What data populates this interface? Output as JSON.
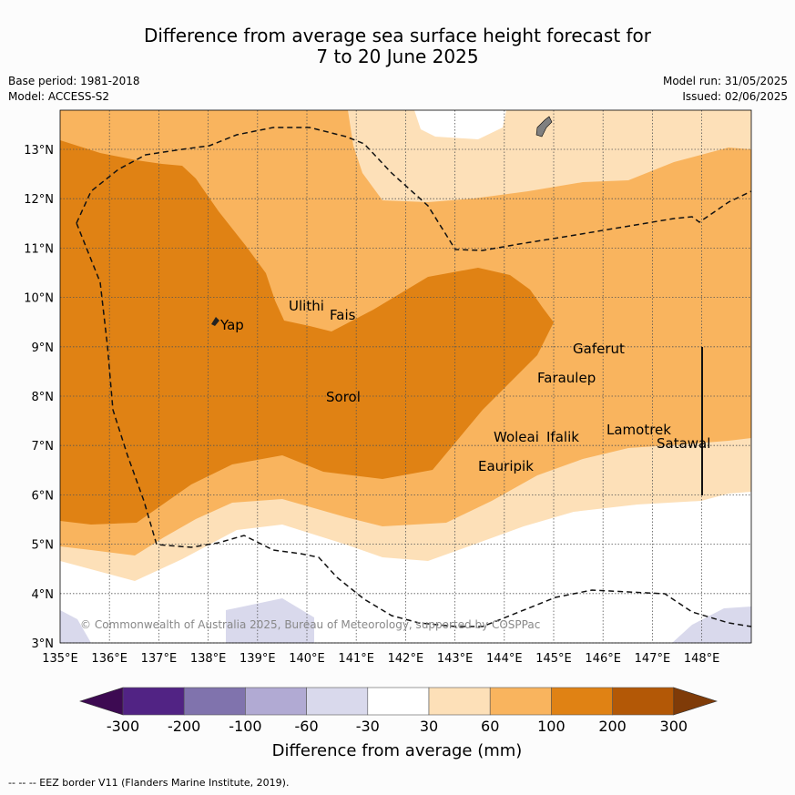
{
  "title_line1": "Difference from average sea surface height forecast for",
  "title_line2": "7 to 20 June 2025",
  "meta_left": [
    "Base period: 1981-2018",
    "Model: ACCESS-S2"
  ],
  "meta_right": [
    "Model run: 31/05/2025",
    "Issued: 02/06/2025"
  ],
  "map": {
    "lat_labels": [
      "13°N",
      "12°N",
      "11°N",
      "10°N",
      "9°N",
      "8°N",
      "7°N",
      "6°N",
      "5°N",
      "4°N",
      "3°N"
    ],
    "lon_labels": [
      "135°E",
      "136°E",
      "137°E",
      "138°E",
      "139°E",
      "140°E",
      "141°E",
      "142°E",
      "143°E",
      "144°E",
      "145°E",
      "146°E",
      "147°E",
      "148°E"
    ],
    "places": [
      "Yap",
      "Ulithi",
      "Fais",
      "Sorol",
      "Gaferut",
      "Faraulep",
      "Woleai",
      "Ifalik",
      "Lamotrek",
      "Satawal",
      "Eauripik"
    ],
    "copyright": "© Commonwealth of Australia 2025, Bureau of Meteorology, supported by COSPPac"
  },
  "colorbar": {
    "ticks": [
      "-300",
      "-200",
      "-100",
      "-60",
      "-30",
      "30",
      "60",
      "100",
      "200",
      "300"
    ],
    "label": "Difference from average (mm)",
    "colors": [
      "#3d0a52",
      "#512384",
      "#8073ad",
      "#b1aad3",
      "#d9d9ec",
      "#ffffff",
      "#fde0b8",
      "#f9b45e",
      "#e08214",
      "#b35806",
      "#7f3b08"
    ]
  },
  "footer": "--  --  -- EEZ border V11 (Flanders Marine Institute, 2019)."
}
